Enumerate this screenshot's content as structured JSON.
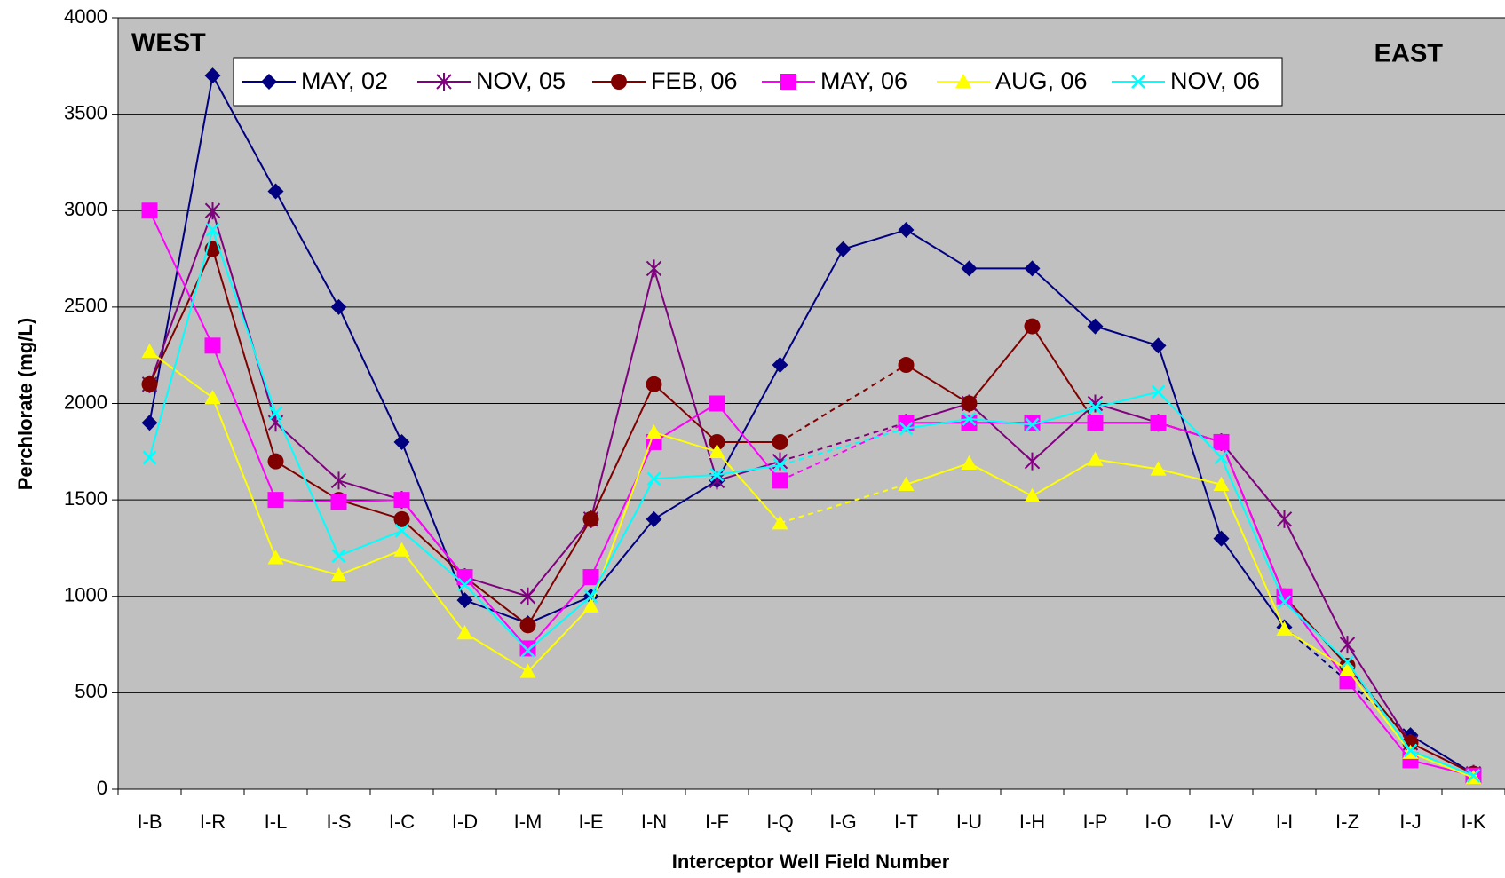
{
  "chart_data": {
    "type": "line",
    "y_label": "Perchlorate (mg/L)",
    "x_label": "Interceptor Well Field Number",
    "annotations": [
      "WEST",
      "EAST"
    ],
    "categories": [
      "I-B",
      "I-R",
      "I-L",
      "I-S",
      "I-C",
      "I-D",
      "I-M",
      "I-E",
      "I-N",
      "I-F",
      "I-Q",
      "I-G",
      "I-T",
      "I-U",
      "I-H",
      "I-P",
      "I-O",
      "I-V",
      "I-I",
      "I-Z",
      "I-J",
      "I-K"
    ],
    "series": [
      {
        "name": "MAY, 02",
        "color": "#000080",
        "marker": "diamond",
        "values": [
          1900,
          3700,
          3100,
          2500,
          1800,
          980,
          860,
          1000,
          1400,
          1600,
          2200,
          2800,
          2900,
          2700,
          2700,
          2400,
          2300,
          1300,
          840,
          null,
          280,
          80
        ]
      },
      {
        "name": "NOV, 05",
        "color": "#800080",
        "marker": "star",
        "values": [
          2100,
          3000,
          1900,
          1600,
          1500,
          1100,
          1000,
          1400,
          2700,
          1600,
          1700,
          null,
          1900,
          2000,
          1700,
          2000,
          1900,
          1800,
          1400,
          750,
          240,
          80
        ]
      },
      {
        "name": "FEB, 06",
        "color": "#800000",
        "marker": "circle",
        "values": [
          2100,
          2800,
          1700,
          1500,
          1400,
          1100,
          850,
          1400,
          2100,
          1800,
          1800,
          null,
          2200,
          2000,
          2400,
          1900,
          1900,
          1800,
          1000,
          640,
          240,
          80
        ]
      },
      {
        "name": "MAY, 06",
        "color": "#ff00ff",
        "marker": "square",
        "values": [
          3000,
          2300,
          1500,
          1490,
          1500,
          1100,
          730,
          1100,
          1800,
          2000,
          1600,
          null,
          1900,
          1900,
          1900,
          1900,
          1900,
          1800,
          1000,
          560,
          150,
          70
        ]
      },
      {
        "name": "AUG, 06",
        "color": "#ffff00",
        "marker": "triangle",
        "values": [
          2270,
          2030,
          1200,
          1110,
          1240,
          810,
          610,
          950,
          1850,
          1750,
          1380,
          null,
          1580,
          1690,
          1520,
          1710,
          1660,
          1580,
          830,
          620,
          190,
          60
        ]
      },
      {
        "name": "NOV, 06",
        "color": "#00ffff",
        "marker": "x",
        "values": [
          1720,
          2900,
          1950,
          1210,
          1340,
          1060,
          720,
          1000,
          1610,
          1630,
          1680,
          null,
          1870,
          1920,
          1890,
          1980,
          2060,
          1720,
          970,
          660,
          200,
          70
        ]
      }
    ],
    "ylim": [
      0,
      4000
    ],
    "yticks": [
      0,
      500,
      1000,
      1500,
      2000,
      2500,
      3000,
      3500,
      4000
    ],
    "grid": true,
    "gap_style": "dashed",
    "legend": "top",
    "background": "#c0c0c0"
  }
}
